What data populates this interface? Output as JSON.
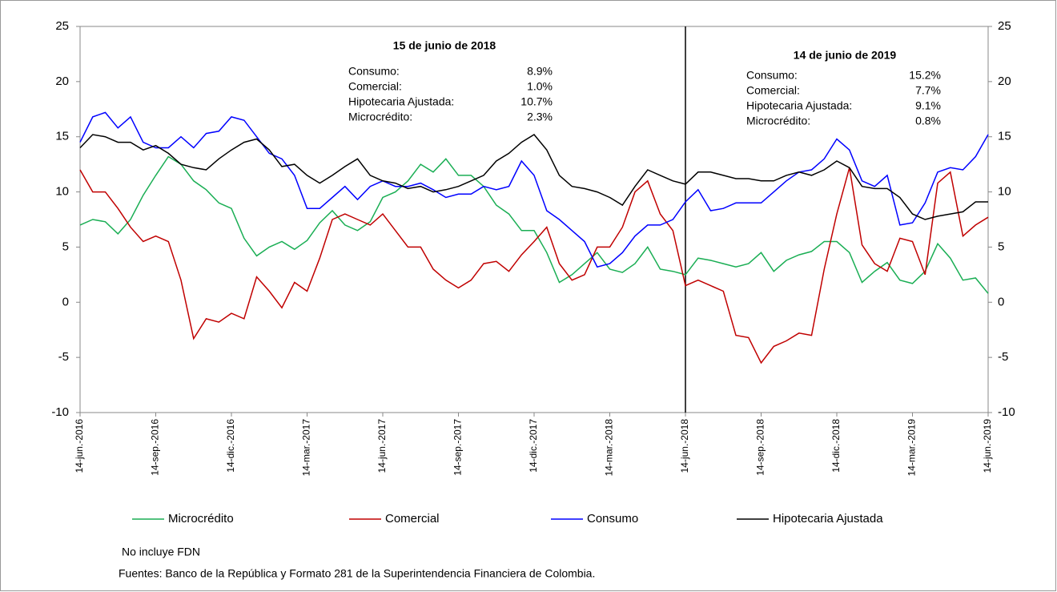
{
  "chart_data": {
    "type": "line",
    "categories": [
      "14-jun.-2016",
      null,
      null,
      null,
      null,
      null,
      "14-sep.-2016",
      null,
      null,
      null,
      null,
      null,
      "14-dic.-2016",
      null,
      null,
      null,
      null,
      null,
      "14-mar.-2017",
      null,
      null,
      null,
      null,
      null,
      "14-jun.-2017",
      null,
      null,
      null,
      null,
      null,
      "14-sep.-2017",
      null,
      null,
      null,
      null,
      null,
      "14-dic.-2017",
      null,
      null,
      null,
      null,
      null,
      "14-mar.-2018",
      null,
      null,
      null,
      null,
      null,
      "14-jun.-2018",
      null,
      null,
      null,
      null,
      null,
      "14-sep.-2018",
      null,
      null,
      null,
      null,
      null,
      "14-dic.-2018",
      null,
      null,
      null,
      null,
      null,
      "14-mar.-2019",
      null,
      null,
      null,
      null,
      null,
      "14-jun.-2019"
    ],
    "series": [
      {
        "name": "Microcrédito",
        "color": "#1aae54",
        "values": [
          7,
          7.5,
          7.3,
          6.2,
          7.5,
          9.7,
          11.5,
          13.2,
          12.5,
          11,
          10.2,
          9,
          8.5,
          5.8,
          4.2,
          5,
          5.5,
          4.8,
          5.6,
          7.2,
          8.3,
          7,
          6.5,
          7.3,
          9.5,
          10,
          11,
          12.5,
          11.8,
          13,
          11.5,
          11.5,
          10.5,
          8.8,
          8,
          6.5,
          6.5,
          4.5,
          1.8,
          2.5,
          3.5,
          4.5,
          3,
          2.7,
          3.5,
          5,
          3,
          2.8,
          2.5,
          4,
          3.8,
          3.5,
          3.2,
          3.5,
          4.5,
          2.8,
          3.8,
          4.3,
          4.6,
          5.5,
          5.5,
          4.5,
          1.8,
          2.8,
          3.6,
          2,
          1.7,
          2.8,
          5.3,
          4,
          2,
          2.2,
          0.8
        ]
      },
      {
        "name": "Comercial",
        "color": "#c00000",
        "values": [
          12,
          10,
          10,
          8.5,
          6.8,
          5.5,
          6,
          5.5,
          2,
          -3.3,
          -1.5,
          -1.8,
          -1,
          -1.5,
          2.3,
          1,
          -0.5,
          1.8,
          1,
          4,
          7.5,
          8,
          7.5,
          7,
          8,
          6.5,
          5,
          5,
          3,
          2,
          1.3,
          2,
          3.5,
          3.7,
          2.8,
          4.3,
          5.5,
          6.8,
          3.5,
          2,
          2.5,
          5,
          5,
          6.8,
          10,
          11,
          8,
          6.5,
          1.5,
          2,
          1.5,
          1,
          -3,
          -3.2,
          -5.5,
          -4,
          -3.5,
          -2.8,
          -3,
          3,
          8,
          12.2,
          5.2,
          3.5,
          2.8,
          5.8,
          5.5,
          2.5,
          10.8,
          11.8,
          6,
          7,
          7.7
        ]
      },
      {
        "name": "Consumo",
        "color": "#0000ff",
        "values": [
          14.5,
          16.8,
          17.2,
          15.8,
          16.8,
          14.5,
          14,
          14,
          15,
          14,
          15.3,
          15.5,
          16.8,
          16.5,
          15,
          13.5,
          13,
          11.5,
          8.5,
          8.5,
          9.5,
          10.5,
          9.3,
          10.5,
          11,
          10.5,
          10.5,
          10.8,
          10.2,
          9.5,
          9.8,
          9.8,
          10.5,
          10.2,
          10.5,
          12.8,
          11.5,
          8.3,
          7.5,
          6.5,
          5.5,
          3.2,
          3.5,
          4.5,
          6,
          7,
          7,
          7.5,
          9.1,
          10.2,
          8.3,
          8.5,
          9,
          9,
          9,
          10,
          11,
          11.8,
          12,
          13,
          14.8,
          13.8,
          11,
          10.5,
          11.5,
          7,
          7.2,
          9,
          11.8,
          12.2,
          12,
          13.2,
          15.2
        ]
      },
      {
        "name": "Hipotecaria Ajustada",
        "color": "#000000",
        "values": [
          14,
          15.2,
          15,
          14.5,
          14.5,
          13.8,
          14.2,
          13.5,
          12.5,
          12.2,
          12,
          13,
          13.8,
          14.5,
          14.8,
          13.8,
          12.3,
          12.5,
          11.5,
          10.8,
          11.5,
          12.3,
          13,
          11.5,
          11,
          10.8,
          10.3,
          10.5,
          10,
          10.2,
          10.5,
          11,
          11.5,
          12.8,
          13.5,
          14.5,
          15.2,
          13.8,
          11.5,
          10.5,
          10.3,
          10,
          9.5,
          8.8,
          10.5,
          12,
          11.5,
          11,
          10.7,
          11.8,
          11.8,
          11.5,
          11.2,
          11.2,
          11,
          11,
          11.5,
          11.8,
          11.5,
          12,
          12.8,
          12.2,
          10.5,
          10.3,
          10.3,
          9.5,
          8,
          7.5,
          7.8,
          8,
          8.2,
          9.1,
          9.1
        ]
      }
    ],
    "ylim": [
      -10,
      25
    ],
    "yticks": [
      -10,
      -5,
      0,
      5,
      10,
      15,
      20,
      25
    ],
    "y2lim": [
      -10,
      25
    ],
    "y2ticks": [
      -10,
      -5,
      0,
      5,
      10,
      15,
      20,
      25
    ],
    "reference_line": "14-jun.-2018",
    "annotations": [
      {
        "title": "15 de junio de 2018",
        "rows": [
          [
            "Consumo:",
            "8.9%"
          ],
          [
            "Comercial:",
            "1.0%"
          ],
          [
            "Hipotecaria Ajustada:",
            "10.7%"
          ],
          [
            "Microcrédito:",
            "2.3%"
          ]
        ]
      },
      {
        "title": "14 de junio de 2019",
        "rows": [
          [
            "Consumo:",
            "15.2%"
          ],
          [
            "Comercial:",
            "7.7%"
          ],
          [
            "Hipotecaria Ajustada:",
            "9.1%"
          ],
          [
            "Microcrédito:",
            "0.8%"
          ]
        ]
      }
    ],
    "notes": [
      "No incluye FDN",
      "Fuentes: Banco de la República y Formato 281 de la Superintendencia Financiera de Colombia."
    ]
  }
}
